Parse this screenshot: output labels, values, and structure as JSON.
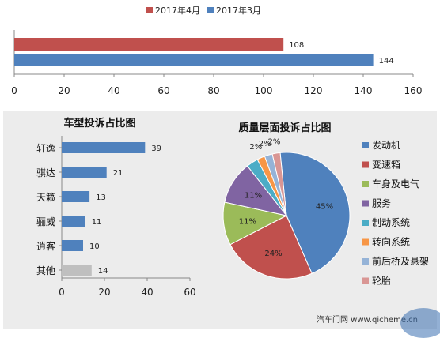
{
  "chart_data": [
    {
      "type": "bar",
      "orientation": "horizontal",
      "series": [
        {
          "name": "2017年4月",
          "color": "#c0504d",
          "values": [
            108
          ]
        },
        {
          "name": "2017年3月",
          "color": "#4f81bd",
          "values": [
            144
          ]
        }
      ],
      "xlim": [
        0,
        160
      ],
      "xticks": [
        "0",
        "20",
        "40",
        "60",
        "80",
        "100",
        "120",
        "140",
        "160"
      ],
      "legend_position": "top",
      "grid": false
    },
    {
      "type": "bar",
      "orientation": "horizontal",
      "title": "车型投诉占比图",
      "categories": [
        "轩逸",
        "骐达",
        "天籁",
        "骊威",
        "逍客",
        "其他"
      ],
      "values": [
        39,
        21,
        13,
        11,
        10,
        14
      ],
      "value_labels": [
        "39",
        "21",
        "13",
        "11",
        "10",
        "14"
      ],
      "colors": [
        "#4f81bd",
        "#4f81bd",
        "#4f81bd",
        "#4f81bd",
        "#4f81bd",
        "#bfbfbf"
      ],
      "xlim": [
        0,
        60
      ],
      "xticks": [
        "0",
        "20",
        "40",
        "60"
      ],
      "grid": false
    },
    {
      "type": "pie",
      "title": "质量层面投诉占比图",
      "categories": [
        "发动机",
        "变速箱",
        "车身及电气",
        "服务",
        "制动系统",
        "转向系统",
        "前后桥及悬架",
        "轮胎"
      ],
      "values": [
        45,
        24,
        11,
        11,
        3,
        2,
        2,
        2
      ],
      "slice_labels": [
        "45%",
        "24%",
        "11%",
        "11%",
        "",
        "2%",
        "2%",
        "2%"
      ],
      "colors": [
        "#4f81bd",
        "#c0504d",
        "#9bbb59",
        "#8064a2",
        "#4bacc6",
        "#f79646",
        "#95b3d7",
        "#d99694"
      ],
      "legend_position": "right"
    }
  ],
  "watermark": {
    "text": "汽车门网 www.qicheme.cn"
  }
}
